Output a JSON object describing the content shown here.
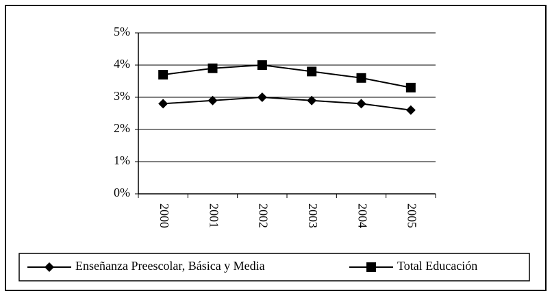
{
  "chart_data": {
    "type": "line",
    "categories": [
      "2000",
      "2001",
      "2002",
      "2003",
      "2004",
      "2005"
    ],
    "series": [
      {
        "name": "Enseñanza Preescolar, Básica y Media",
        "color": "#000000",
        "marker": "diamond",
        "values": [
          2.8,
          2.9,
          3.0,
          2.9,
          2.8,
          2.6
        ]
      },
      {
        "name": "Total Educación",
        "color": "#000000",
        "marker": "square",
        "values": [
          3.7,
          3.9,
          4.0,
          3.8,
          3.6,
          3.3
        ]
      }
    ],
    "ylim": [
      0,
      5
    ],
    "yticks": [
      {
        "value": 0,
        "label": "0%"
      },
      {
        "value": 1,
        "label": "1%"
      },
      {
        "value": 2,
        "label": "2%"
      },
      {
        "value": 3,
        "label": "3%"
      },
      {
        "value": 4,
        "label": "4%"
      },
      {
        "value": 5,
        "label": "5%"
      }
    ],
    "grid": true
  }
}
